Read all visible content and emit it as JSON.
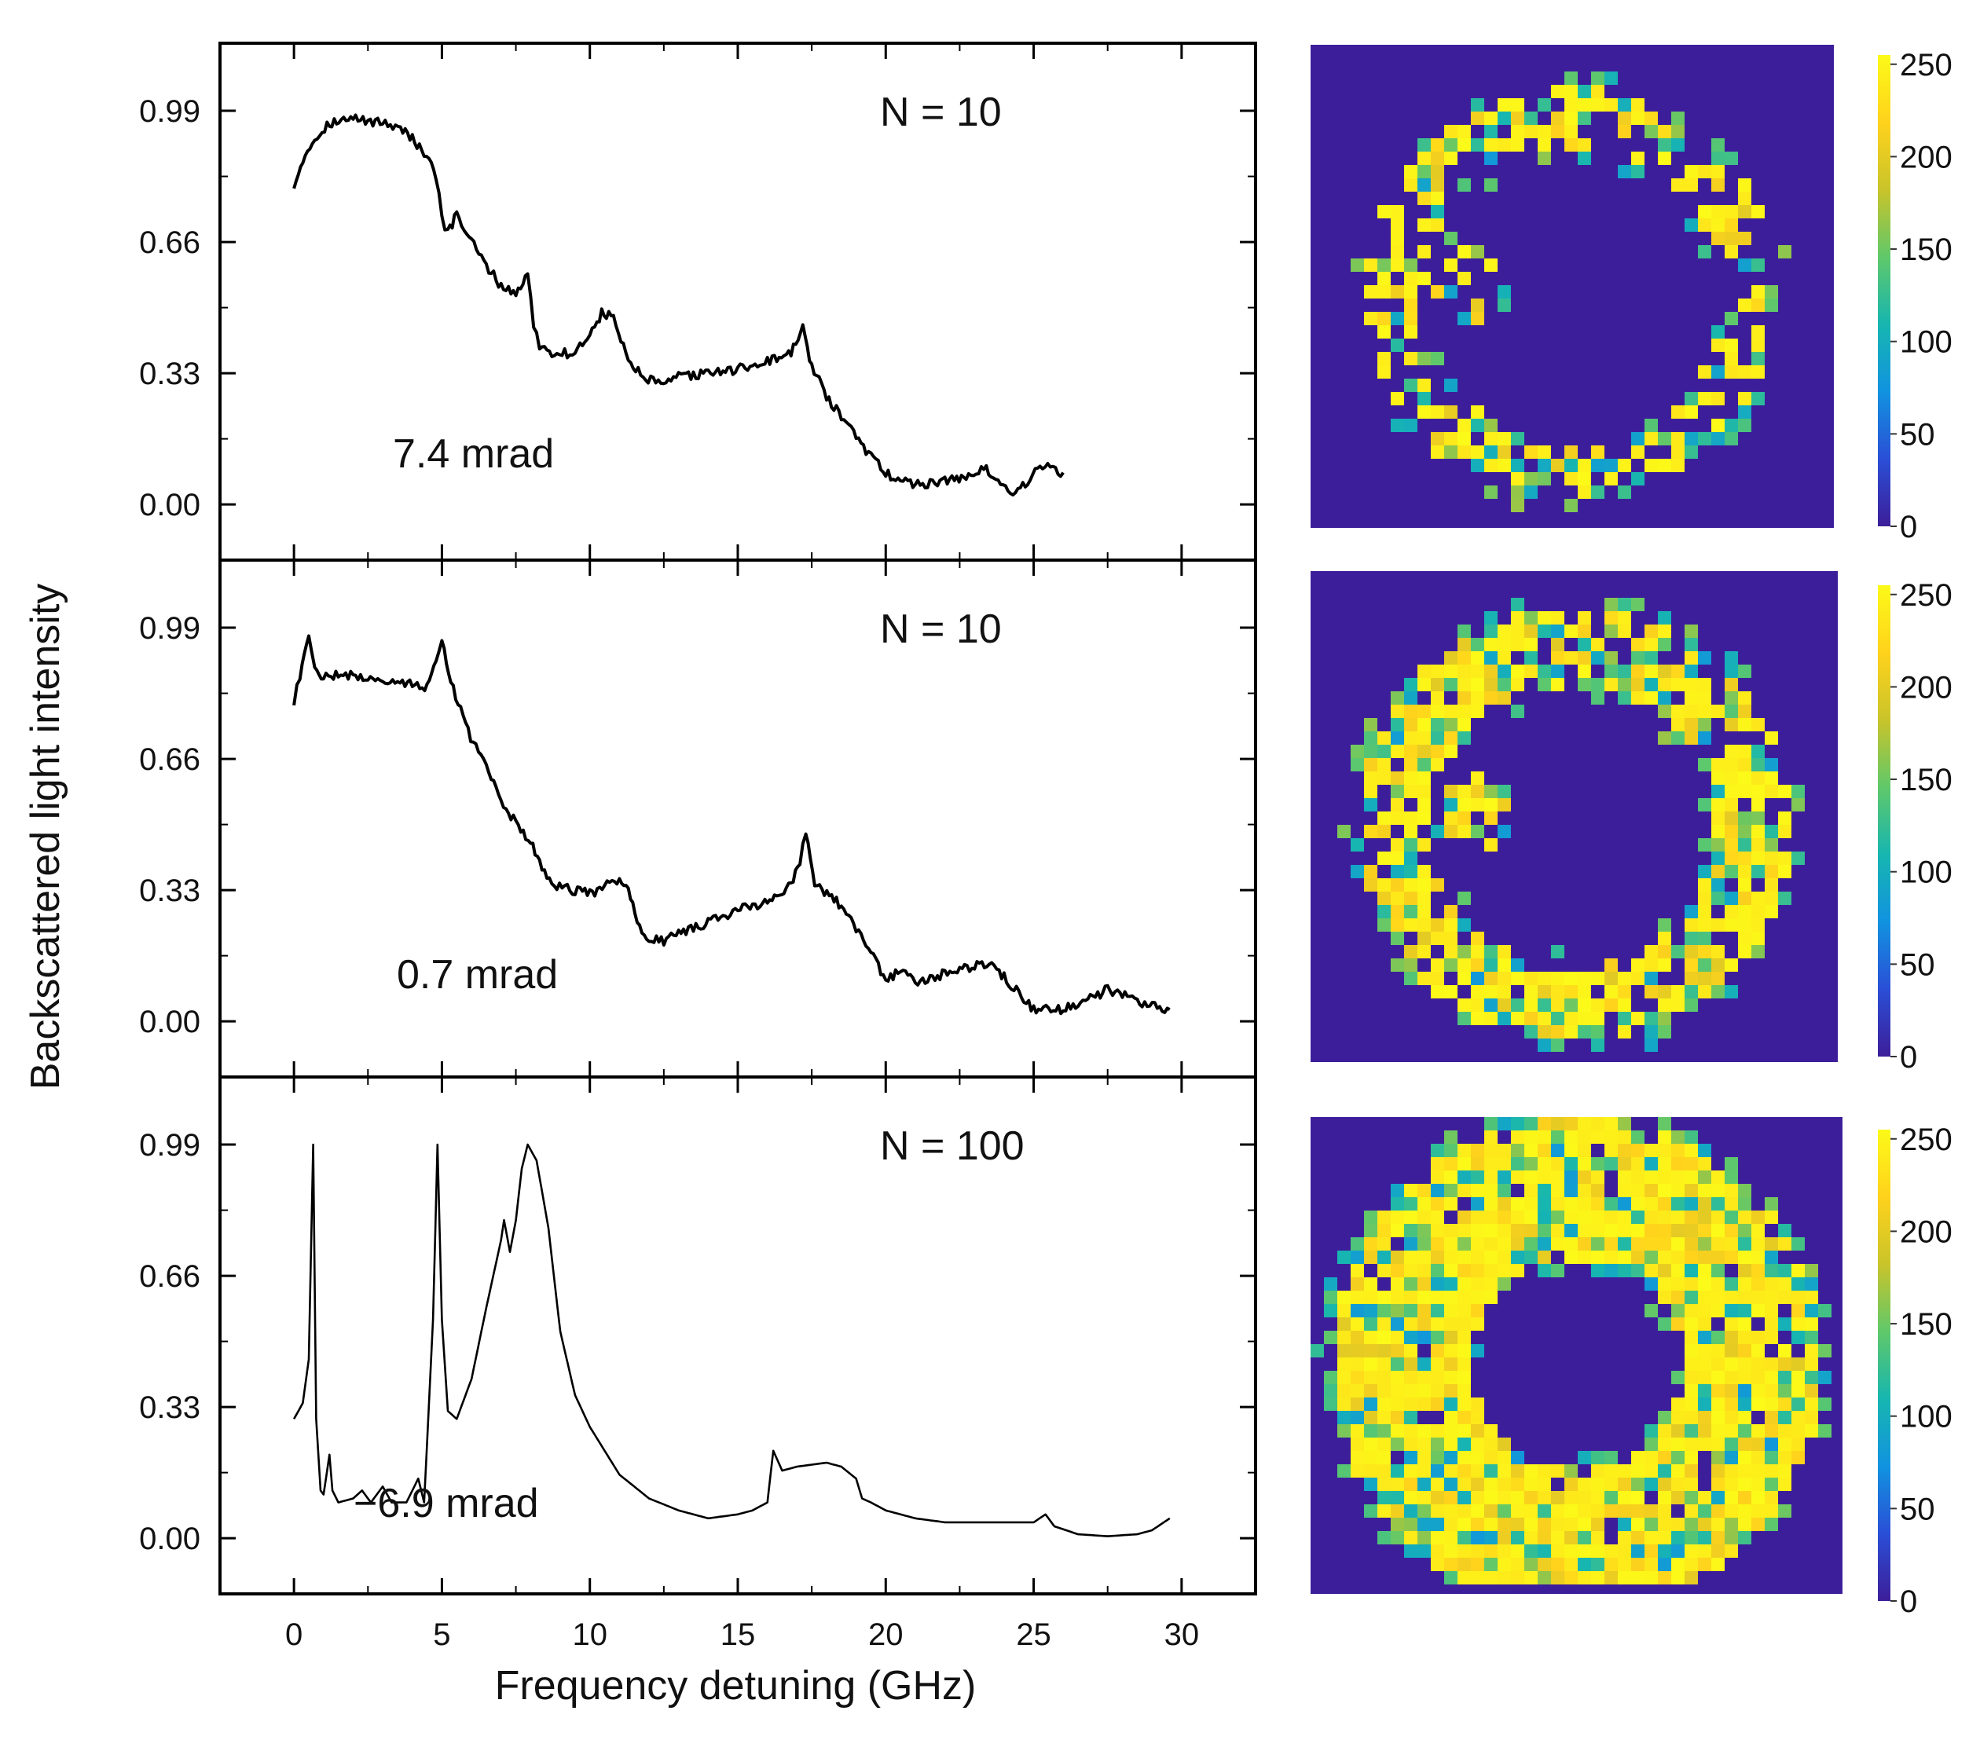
{
  "figure": {
    "ylabel": "Backscattered light intensity",
    "xlabel": "Frequency detuning (GHz)"
  },
  "chart_data": [
    {
      "type": "line",
      "panel": "top",
      "title": "",
      "annotation_N": "N = 10",
      "annotation_angle": "7.4 mrad",
      "xlabel": "Frequency detuning (GHz)",
      "ylabel": "Backscattered light intensity",
      "xlim": [
        -2.5,
        32.5
      ],
      "ylim": [
        -0.14,
        1.16
      ],
      "x_ticks": [
        "0",
        "5",
        "10",
        "15",
        "20",
        "25",
        "30"
      ],
      "y_ticks": [
        "0.00",
        "0.33",
        "0.66",
        "0.99"
      ],
      "line_width": "thick",
      "series": [
        {
          "name": "N = 10, 7.4 mrad",
          "x": [
            0,
            0.3,
            0.7,
            1.2,
            2,
            3,
            3.6,
            4,
            4.4,
            4.8,
            5.0,
            5.2,
            5.5,
            6,
            6.5,
            7,
            7.5,
            7.9,
            8.1,
            8.3,
            8.8,
            9.5,
            10,
            10.4,
            10.8,
            11.3,
            11.8,
            12.4,
            13,
            14,
            15,
            16,
            16.8,
            17.2,
            17.5,
            18,
            19,
            19.5,
            20,
            20.5,
            21,
            22,
            22.8,
            23.4,
            23.8,
            24.3,
            24.8,
            25.3,
            26
          ],
          "y": [
            0.8,
            0.87,
            0.92,
            0.96,
            0.97,
            0.96,
            0.95,
            0.92,
            0.88,
            0.83,
            0.72,
            0.68,
            0.73,
            0.66,
            0.6,
            0.55,
            0.53,
            0.58,
            0.45,
            0.4,
            0.38,
            0.38,
            0.43,
            0.48,
            0.47,
            0.36,
            0.32,
            0.3,
            0.32,
            0.33,
            0.34,
            0.36,
            0.38,
            0.44,
            0.35,
            0.27,
            0.17,
            0.12,
            0.08,
            0.06,
            0.05,
            0.06,
            0.07,
            0.09,
            0.06,
            0.02,
            0.06,
            0.1,
            0.08
          ]
        }
      ]
    },
    {
      "type": "line",
      "panel": "middle",
      "title": "",
      "annotation_N": "N = 10",
      "annotation_angle": "0.7 mrad",
      "xlabel": "Frequency detuning (GHz)",
      "ylabel": "Backscattered light intensity",
      "xlim": [
        -2.5,
        32.5
      ],
      "ylim": [
        -0.14,
        1.16
      ],
      "x_ticks": [
        "0",
        "5",
        "10",
        "15",
        "20",
        "25",
        "30"
      ],
      "y_ticks": [
        "0.00",
        "0.33",
        "0.66",
        "0.99"
      ],
      "line_width": "thick",
      "series": [
        {
          "name": "N = 10, 0.7 mrad",
          "x": [
            0,
            0.2,
            0.5,
            0.7,
            1.0,
            2,
            3,
            4,
            4.5,
            4.8,
            5.0,
            5.3,
            5.8,
            6.5,
            7,
            7.5,
            8,
            8.3,
            8.8,
            9.5,
            10,
            10.5,
            11,
            11.3,
            11.6,
            12,
            12.5,
            13,
            14,
            15,
            16,
            16.8,
            17.1,
            17.3,
            17.6,
            18.5,
            19.5,
            20,
            20.5,
            21,
            22,
            23,
            23.5,
            24,
            25,
            26,
            27,
            27.5,
            28.5,
            29.6
          ],
          "y": [
            0.8,
            0.87,
            0.97,
            0.88,
            0.87,
            0.87,
            0.86,
            0.85,
            0.84,
            0.9,
            0.96,
            0.86,
            0.74,
            0.64,
            0.55,
            0.5,
            0.45,
            0.4,
            0.34,
            0.33,
            0.32,
            0.34,
            0.36,
            0.33,
            0.25,
            0.21,
            0.2,
            0.22,
            0.25,
            0.28,
            0.3,
            0.34,
            0.4,
            0.47,
            0.35,
            0.29,
            0.18,
            0.1,
            0.13,
            0.1,
            0.12,
            0.14,
            0.15,
            0.11,
            0.03,
            0.03,
            0.06,
            0.08,
            0.05,
            0.03
          ]
        }
      ]
    },
    {
      "type": "line",
      "panel": "bottom",
      "title": "",
      "annotation_N": "N = 100",
      "annotation_angle": "−6.9 mrad",
      "xlabel": "Frequency detuning (GHz)",
      "ylabel": "Backscattered light intensity",
      "xlim": [
        -2.5,
        32.5
      ],
      "ylim": [
        -0.14,
        1.16
      ],
      "x_ticks": [
        "0",
        "5",
        "10",
        "15",
        "20",
        "25",
        "30"
      ],
      "y_ticks": [
        "0.00",
        "0.33",
        "0.66",
        "0.99"
      ],
      "line_width": "thin",
      "series": [
        {
          "name": "N = 100, −6.9 mrad",
          "x": [
            0,
            0.3,
            0.5,
            0.65,
            0.75,
            0.9,
            1.0,
            1.2,
            1.3,
            1.5,
            2,
            2.3,
            2.6,
            3,
            3.3,
            3.8,
            4.2,
            4.4,
            4.7,
            4.85,
            5.0,
            5.2,
            5.5,
            6,
            6.5,
            7,
            7.1,
            7.3,
            7.5,
            7.7,
            7.9,
            8.2,
            8.6,
            9,
            9.5,
            10,
            10.5,
            11,
            12,
            13,
            14,
            15,
            15.5,
            16,
            16.2,
            16.5,
            17,
            18,
            18.5,
            19,
            19.2,
            19.5,
            20,
            21,
            22,
            23,
            24,
            25,
            25.4,
            25.7,
            26.5,
            27.5,
            28.5,
            29,
            29.6
          ],
          "y": [
            0.3,
            0.34,
            0.45,
            0.99,
            0.3,
            0.12,
            0.11,
            0.21,
            0.12,
            0.09,
            0.1,
            0.12,
            0.09,
            0.13,
            0.09,
            0.09,
            0.15,
            0.09,
            0.55,
            0.99,
            0.55,
            0.32,
            0.3,
            0.4,
            0.58,
            0.75,
            0.8,
            0.72,
            0.8,
            0.93,
            0.99,
            0.95,
            0.78,
            0.52,
            0.36,
            0.28,
            0.22,
            0.16,
            0.1,
            0.07,
            0.05,
            0.06,
            0.07,
            0.09,
            0.22,
            0.17,
            0.18,
            0.19,
            0.18,
            0.15,
            0.1,
            0.09,
            0.07,
            0.05,
            0.04,
            0.04,
            0.04,
            0.04,
            0.06,
            0.03,
            0.01,
            0.005,
            0.01,
            0.02,
            0.05
          ]
        }
      ]
    }
  ],
  "heatmaps": [
    {
      "panel": "top",
      "ring_radius": 0.34,
      "ring_width": 0.055,
      "fill_prob": 0.5,
      "inner_blob": true,
      "seed": 11
    },
    {
      "panel": "middle",
      "ring_radius": 0.34,
      "ring_width": 0.07,
      "fill_prob": 0.72,
      "inner_blob": true,
      "seed": 23
    },
    {
      "panel": "bottom",
      "ring_radius": 0.33,
      "ring_width": 0.13,
      "fill_prob": 0.93,
      "inner_blob": false,
      "seed": 37
    }
  ],
  "colorbar": {
    "ticks": [
      "0",
      "50",
      "100",
      "150",
      "200",
      "250"
    ],
    "range": [
      0,
      255
    ],
    "colors": [
      "#3d1e9a",
      "#2a4fd6",
      "#1193e0",
      "#17b6b0",
      "#5fc86a",
      "#c9c42a",
      "#ffd21c",
      "#fcfa18"
    ]
  },
  "colors": {
    "heatmap_background": "#3d1e9a",
    "line": "#000000"
  }
}
